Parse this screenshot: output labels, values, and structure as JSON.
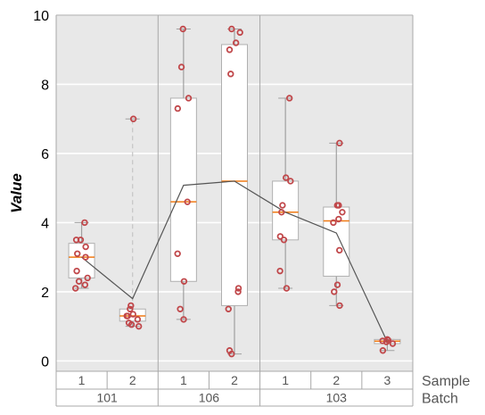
{
  "chart_data": {
    "type": "box",
    "ylabel": "Value",
    "ylim": [
      -0.3,
      10
    ],
    "yticks": [
      0,
      2,
      4,
      6,
      8,
      10
    ],
    "grid": true,
    "x_levels": [
      {
        "name": "Sample",
        "labels": [
          "1",
          "2",
          "1",
          "2",
          "1",
          "2",
          "3"
        ]
      },
      {
        "name": "Batch",
        "groups": [
          {
            "label": "101",
            "span": 2
          },
          {
            "label": "106",
            "span": 2
          },
          {
            "label": "103",
            "span": 3
          }
        ]
      }
    ],
    "boxes": [
      {
        "batch": "101",
        "sample": "1",
        "q1": 2.4,
        "median": 3.0,
        "q3": 3.4,
        "whisker_low": 2.1,
        "whisker_high": 4.0,
        "points": [
          4.0,
          3.5,
          3.5,
          3.3,
          3.1,
          3.0,
          2.6,
          2.4,
          2.3,
          2.2,
          2.1
        ]
      },
      {
        "batch": "101",
        "sample": "2",
        "q1": 1.15,
        "median": 1.3,
        "q3": 1.5,
        "whisker_low": 1.0,
        "whisker_high": 7.0,
        "whisker_high_dashed": true,
        "points": [
          7.0,
          1.6,
          1.5,
          1.35,
          1.3,
          1.3,
          1.2,
          1.1,
          1.05,
          1.0
        ]
      },
      {
        "batch": "106",
        "sample": "1",
        "q1": 2.3,
        "median": 4.6,
        "q3": 7.6,
        "whisker_low": 1.2,
        "whisker_high": 9.6,
        "points": [
          9.6,
          8.5,
          7.6,
          7.3,
          4.6,
          3.1,
          2.3,
          1.5,
          1.2
        ]
      },
      {
        "batch": "106",
        "sample": "2",
        "q1": 1.6,
        "median": 5.2,
        "q3": 9.15,
        "whisker_low": 0.2,
        "whisker_high": 9.6,
        "points": [
          9.6,
          9.5,
          9.2,
          9.0,
          8.3,
          2.1,
          2.0,
          1.5,
          0.3,
          0.2
        ]
      },
      {
        "batch": "103",
        "sample": "1",
        "q1": 3.5,
        "median": 4.3,
        "q3": 5.2,
        "whisker_low": 2.1,
        "whisker_high": 7.6,
        "points": [
          7.6,
          5.3,
          5.2,
          4.5,
          4.3,
          3.6,
          3.5,
          2.6,
          2.1
        ]
      },
      {
        "batch": "103",
        "sample": "2",
        "q1": 2.45,
        "median": 4.05,
        "q3": 4.45,
        "whisker_low": 1.6,
        "whisker_high": 6.3,
        "points": [
          6.3,
          4.5,
          4.5,
          4.3,
          4.1,
          4.0,
          3.2,
          2.2,
          2.0,
          1.6
        ]
      },
      {
        "batch": "103",
        "sample": "3",
        "q1": 0.5,
        "median": 0.57,
        "q3": 0.62,
        "whisker_low": 0.3,
        "whisker_high": 0.62,
        "points": [
          0.62,
          0.6,
          0.58,
          0.55,
          0.5,
          0.3
        ]
      }
    ],
    "mean_line": [
      3.0,
      1.8,
      5.08,
      5.2,
      4.3,
      3.7,
      0.55
    ],
    "colors": {
      "panel_background": "#e8e8e8",
      "gridline": "#ffffff",
      "box_fill": "#ffffff",
      "box_edge": "#b0b0b0",
      "whisker": "#a0a0a0",
      "median": "#f07a14",
      "point": "#c0474a",
      "mean_line": "#555555",
      "separator": "#a8a8a8"
    }
  }
}
